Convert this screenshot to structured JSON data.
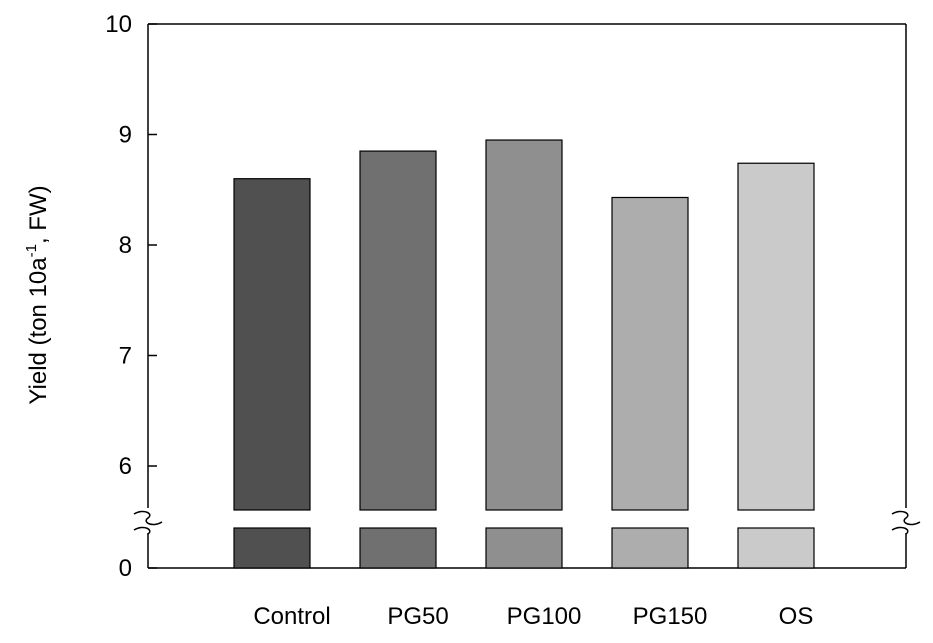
{
  "chart_data": {
    "type": "bar",
    "title": "",
    "xlabel": "",
    "ylabel": {
      "main": "Yield (ton 10a",
      "sup": "-1",
      "rest": ", FW)"
    },
    "categories": [
      "Control",
      "PG50",
      "PG100",
      "PG150",
      "OS"
    ],
    "values": [
      8.6,
      8.85,
      8.95,
      8.43,
      8.74
    ],
    "bar_colors": [
      "#505050",
      "#707070",
      "#8f8f8f",
      "#adadad",
      "#cacaca"
    ],
    "ylim": [
      0,
      10
    ],
    "axis_break": [
      0.4,
      5.55
    ],
    "y_ticks": [
      {
        "value": 0,
        "label": "0"
      },
      {
        "value": 6,
        "label": "6"
      },
      {
        "value": 7,
        "label": "7"
      },
      {
        "value": 8,
        "label": "8"
      },
      {
        "value": 9,
        "label": "9"
      },
      {
        "value": 10,
        "label": "10"
      }
    ],
    "grid": false,
    "legend": "none"
  }
}
